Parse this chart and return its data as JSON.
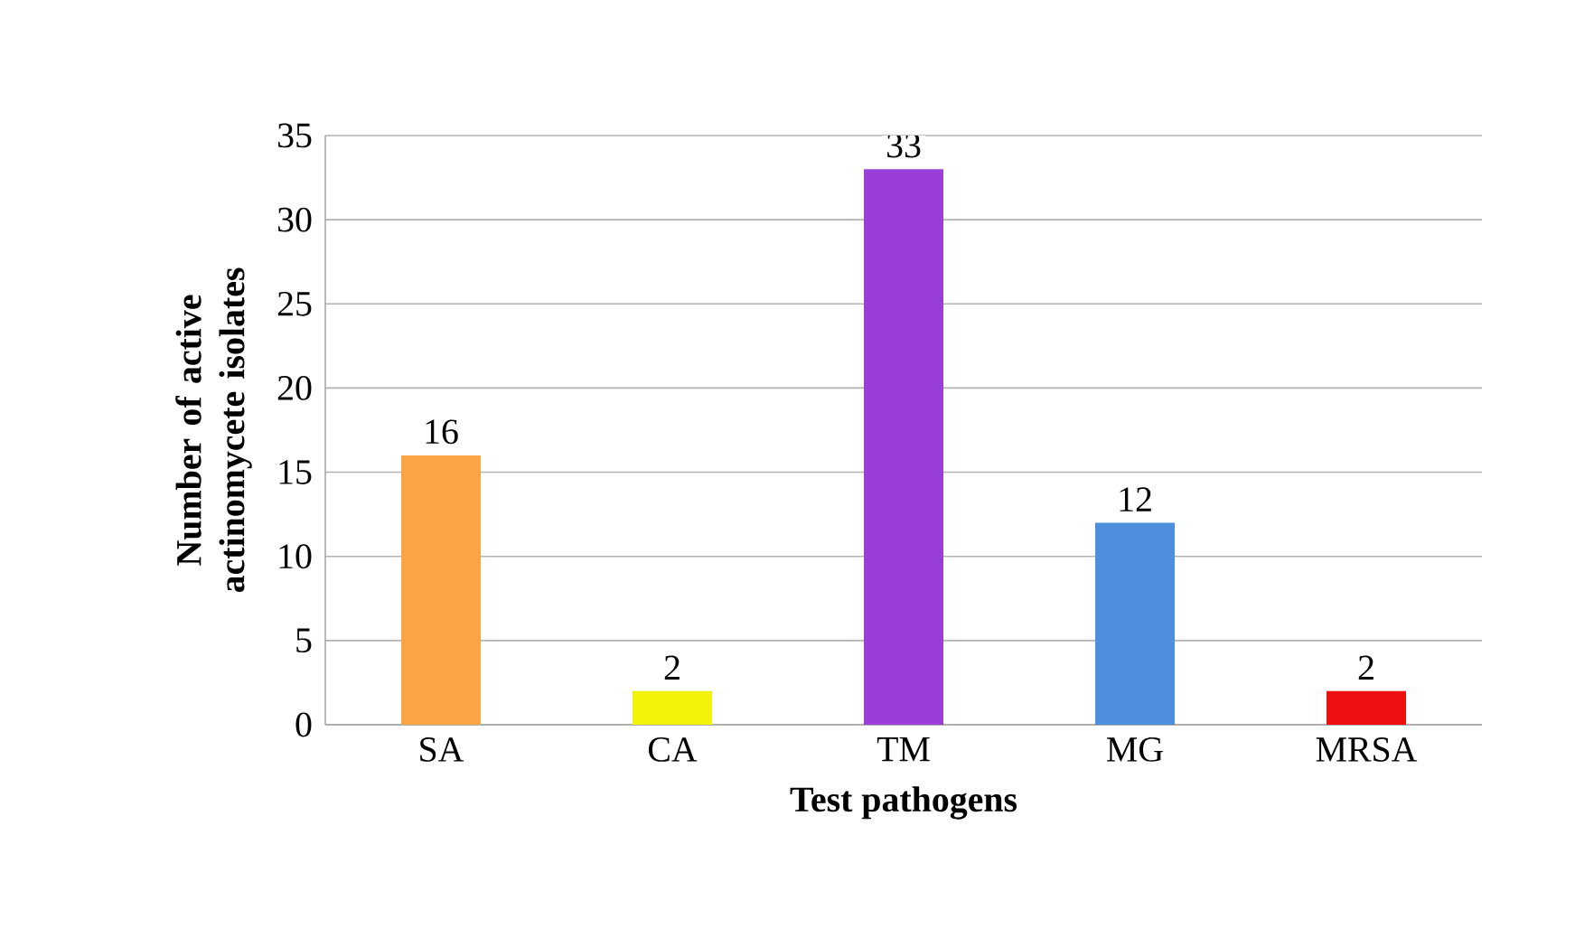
{
  "chart_data": {
    "type": "bar",
    "xlabel": "Test pathogens",
    "ylabel": "Number of active actinomycete isolates",
    "categories": [
      "SA",
      "CA",
      "TM",
      "MG",
      "MRSA"
    ],
    "values": [
      16,
      2,
      33,
      12,
      2
    ],
    "colors": [
      "#f9a445",
      "#f2f20a",
      "#9a3ed8",
      "#4d8fdc",
      "#ee1010"
    ],
    "ylim": [
      0,
      35
    ],
    "yticks": [
      0,
      5,
      10,
      15,
      20,
      25,
      30,
      35
    ],
    "grid": "y",
    "data_labels": true
  }
}
